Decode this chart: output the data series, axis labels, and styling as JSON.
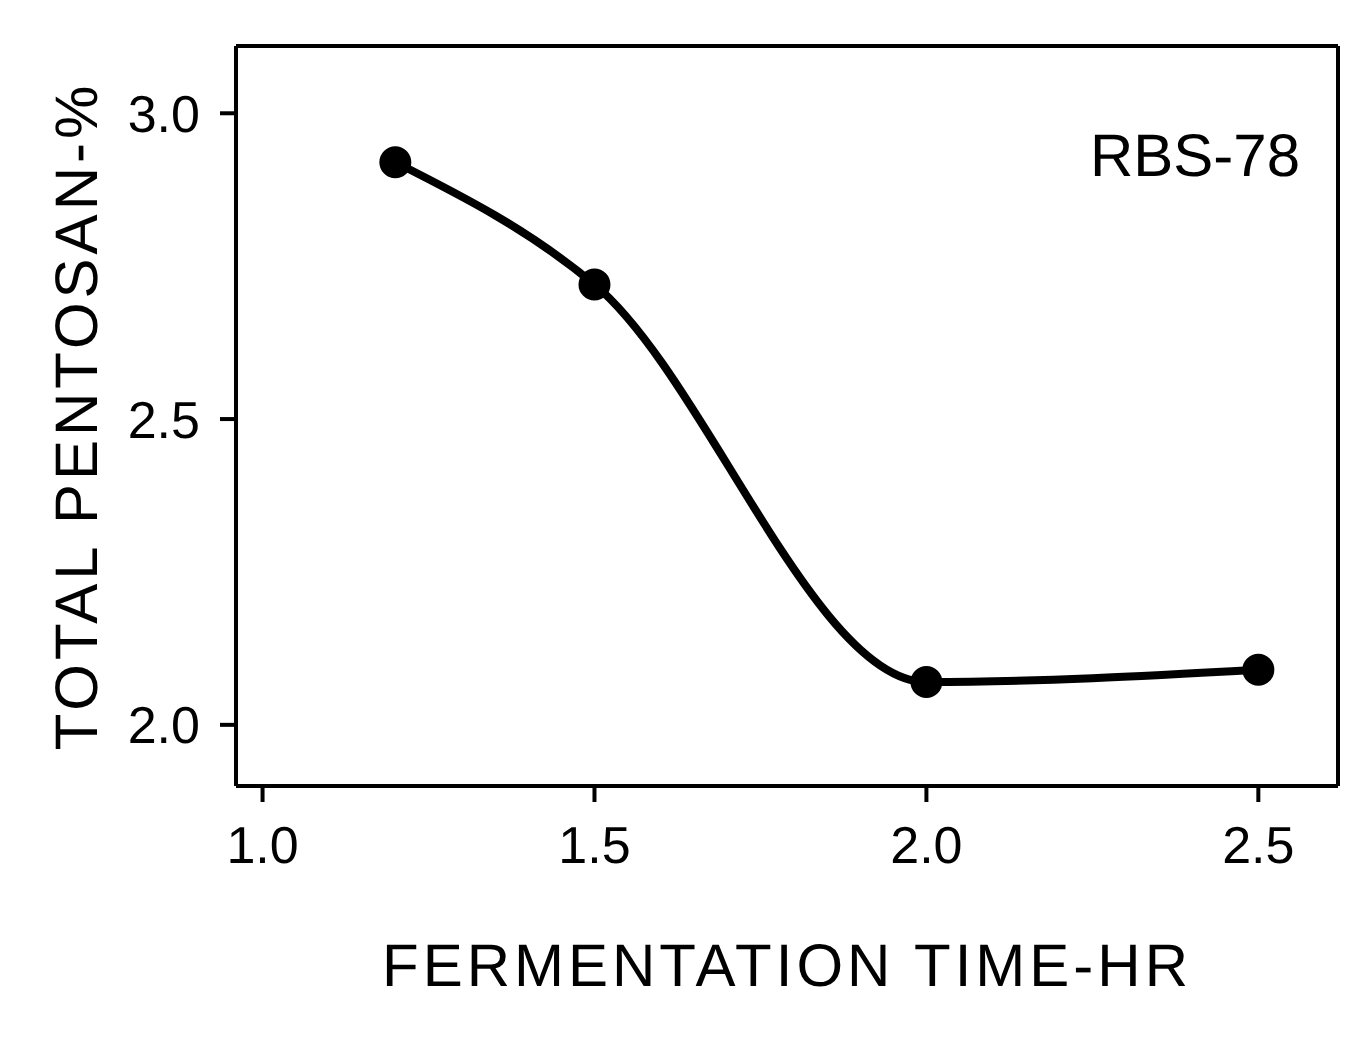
{
  "chart_data": {
    "type": "line",
    "xlabel": "FERMENTATION TIME-HR",
    "ylabel": "TOTAL PENTOSAN-%",
    "annotations": [
      "RBS-78"
    ],
    "x": [
      1.2,
      1.5,
      2.0,
      2.5
    ],
    "series": [
      {
        "color": "#000000",
        "values": [
          2.92,
          2.72,
          2.07,
          2.09
        ]
      }
    ],
    "xlim": [
      0.96,
      2.62
    ],
    "xticks": [
      {
        "value": 1.0,
        "label": "1.0"
      },
      1.5,
      {
        "value": 2.0,
        "label": "2.0"
      },
      2.5
    ],
    "ylim": [
      1.9,
      3.11
    ],
    "yticks": [
      {
        "value": 2.0,
        "label": "2.0"
      },
      2.5,
      {
        "value": 3.0,
        "label": "3.0"
      }
    ],
    "grid": false,
    "legend": false,
    "marker": "circle",
    "line_style": "solid"
  }
}
